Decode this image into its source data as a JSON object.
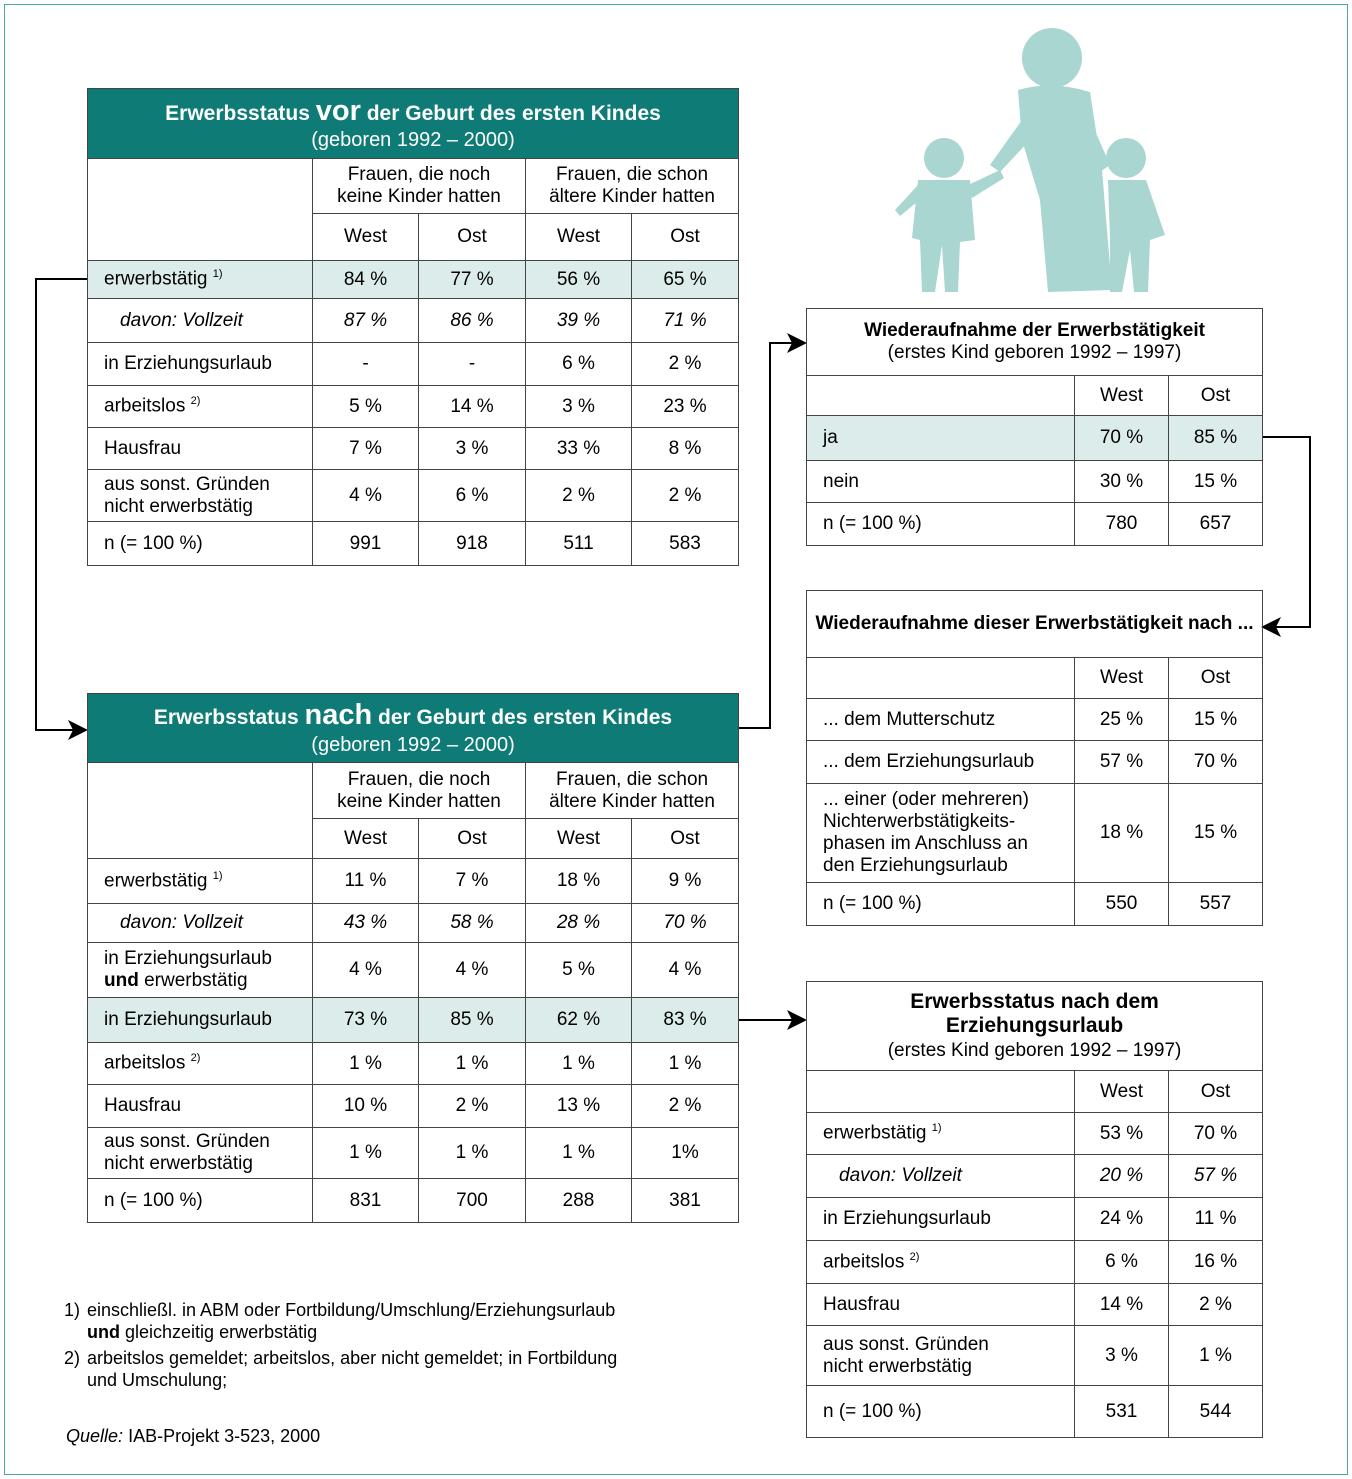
{
  "before_table": {
    "title": [
      "Erwerbsstatus",
      "vor",
      "der Geburt des ersten Kindes"
    ],
    "subtitle": "(geboren 1992 – 2000)",
    "group_headers": [
      [
        "Frauen, die noch",
        "keine Kinder hatten"
      ],
      [
        "Frauen, die schon",
        "ältere Kinder hatten"
      ]
    ],
    "column_headers": [
      "West",
      "Ost",
      "West",
      "Ost"
    ],
    "rows": [
      {
        "label": [
          "erwerbstätig"
        ],
        "note": "1)",
        "values": [
          "84 %",
          "77 %",
          "56 %",
          "65 %"
        ]
      },
      {
        "label": [
          "davon: Vollzeit"
        ],
        "values": [
          "87 %",
          "86 %",
          "39 %",
          "71 %"
        ]
      },
      {
        "label": [
          "in Erziehungsurlaub"
        ],
        "values": [
          "-",
          "-",
          "6 %",
          "2 %"
        ]
      },
      {
        "label": [
          "arbeitslos"
        ],
        "note": "2)",
        "values": [
          "5 %",
          "14 %",
          "3 %",
          "23 %"
        ]
      },
      {
        "label": [
          "Hausfrau"
        ],
        "values": [
          "7 %",
          "3 %",
          "33 %",
          "8 %"
        ]
      },
      {
        "label": [
          "aus sonst. Gründen",
          "nicht erwerbstätig"
        ],
        "values": [
          "4 %",
          "6 %",
          "2 %",
          "2 %"
        ]
      },
      {
        "label": [
          "n (= 100 %)"
        ],
        "values": [
          "991",
          "918",
          "511",
          "583"
        ]
      }
    ]
  },
  "after_table": {
    "title": [
      "Erwerbsstatus",
      "nach",
      "der Geburt des ersten Kindes"
    ],
    "subtitle": "(geboren 1992 – 2000)",
    "group_headers": [
      [
        "Frauen, die noch",
        "keine Kinder hatten"
      ],
      [
        "Frauen, die schon",
        "ältere Kinder hatten"
      ]
    ],
    "column_headers": [
      "West",
      "Ost",
      "West",
      "Ost"
    ],
    "rows": [
      {
        "label": [
          "erwerbstätig"
        ],
        "note": "1)",
        "values": [
          "11 %",
          "7 %",
          "18 %",
          "9 %"
        ]
      },
      {
        "label": [
          "davon: Vollzeit"
        ],
        "values": [
          "43 %",
          "58 %",
          "28 %",
          "70 %"
        ]
      },
      {
        "label": [
          "in Erziehungsurlaub",
          [
            "und",
            "erwerbstätig"
          ]
        ],
        "values": [
          "4 %",
          "4 %",
          "5 %",
          "4 %"
        ]
      },
      {
        "label": [
          "in Erziehungsurlaub"
        ],
        "values": [
          "73 %",
          "85 %",
          "62 %",
          "83 %"
        ]
      },
      {
        "label": [
          "arbeitslos"
        ],
        "note": "2)",
        "values": [
          "1 %",
          "1 %",
          "1 %",
          "1 %"
        ]
      },
      {
        "label": [
          "Hausfrau"
        ],
        "values": [
          "10 %",
          "2 %",
          "13 %",
          "2 %"
        ]
      },
      {
        "label": [
          "aus sonst. Gründen",
          "nicht erwerbstätig"
        ],
        "values": [
          "1 %",
          "1 %",
          "1 %",
          "1%"
        ]
      },
      {
        "label": [
          "n (= 100 %)"
        ],
        "values": [
          "831",
          "700",
          "288",
          "381"
        ]
      }
    ]
  },
  "resumption_table": {
    "title": "Wiederaufnahme der Erwerbstätigkeit",
    "subtitle": "(erstes Kind geboren 1992 – 1997)",
    "column_headers": [
      "West",
      "Ost"
    ],
    "rows": [
      {
        "label": [
          "ja"
        ],
        "values": [
          "70 %",
          "85 %"
        ]
      },
      {
        "label": [
          "nein"
        ],
        "values": [
          "30 %",
          "15 %"
        ]
      },
      {
        "label": [
          "n  (= 100 %)"
        ],
        "values": [
          "780",
          "657"
        ]
      }
    ]
  },
  "timing_table": {
    "title": "Wiederaufnahme dieser Erwerbstätigkeit nach ...",
    "column_headers": [
      "West",
      "Ost"
    ],
    "rows": [
      {
        "label": [
          "... dem Mutterschutz"
        ],
        "values": [
          "25 %",
          "15 %"
        ]
      },
      {
        "label": [
          "... dem Erziehungsurlaub"
        ],
        "values": [
          "57 %",
          "70 %"
        ]
      },
      {
        "label": [
          "... einer (oder mehreren)",
          "Nichterwerbstätigkeits-",
          "phasen im Anschluss an",
          "den Erziehungsurlaub"
        ],
        "values": [
          "18 %",
          "15 %"
        ]
      },
      {
        "label": [
          "n (= 100 %)"
        ],
        "values": [
          "550",
          "557"
        ]
      }
    ]
  },
  "after_leave_table": {
    "title": "Erwerbsstatus nach dem Erziehungsurlaub",
    "subtitle": "(erstes Kind geboren 1992 – 1997)",
    "column_headers": [
      "West",
      "Ost"
    ],
    "rows": [
      {
        "label": [
          "erwerbstätig"
        ],
        "note": "1)",
        "values": [
          "53 %",
          "70 %"
        ]
      },
      {
        "label": [
          "davon: Vollzeit"
        ],
        "values": [
          "20 %",
          "57 %"
        ]
      },
      {
        "label": [
          "in Erziehungsurlaub"
        ],
        "values": [
          "24 %",
          "11 %"
        ]
      },
      {
        "label": [
          "arbeitslos"
        ],
        "note": "2)",
        "values": [
          "6 %",
          "16 %"
        ]
      },
      {
        "label": [
          "Hausfrau"
        ],
        "values": [
          "14 %",
          "2 %"
        ]
      },
      {
        "label": [
          "aus sonst. Gründen",
          "nicht erwerbstätig"
        ],
        "values": [
          "3 %",
          "1 %"
        ]
      },
      {
        "label": [
          "n (= 100 %)"
        ],
        "values": [
          "531",
          "544"
        ]
      }
    ]
  },
  "footnotes": [
    {
      "number": "1)",
      "text": [
        "einschließl. in ABM oder Fortbildung/Umschlung/Erziehungsurlaub",
        [
          "und",
          "gleichzeitig erwerbstätig"
        ]
      ]
    },
    {
      "number": "2)",
      "text": [
        "arbeitslos gemeldet; arbeitslos, aber nicht gemeldet; in Fortbildung",
        "und Umschulung;"
      ]
    }
  ],
  "source": {
    "label": "Quelle:",
    "text": "IAB-Projekt 3-523, 2000"
  }
}
